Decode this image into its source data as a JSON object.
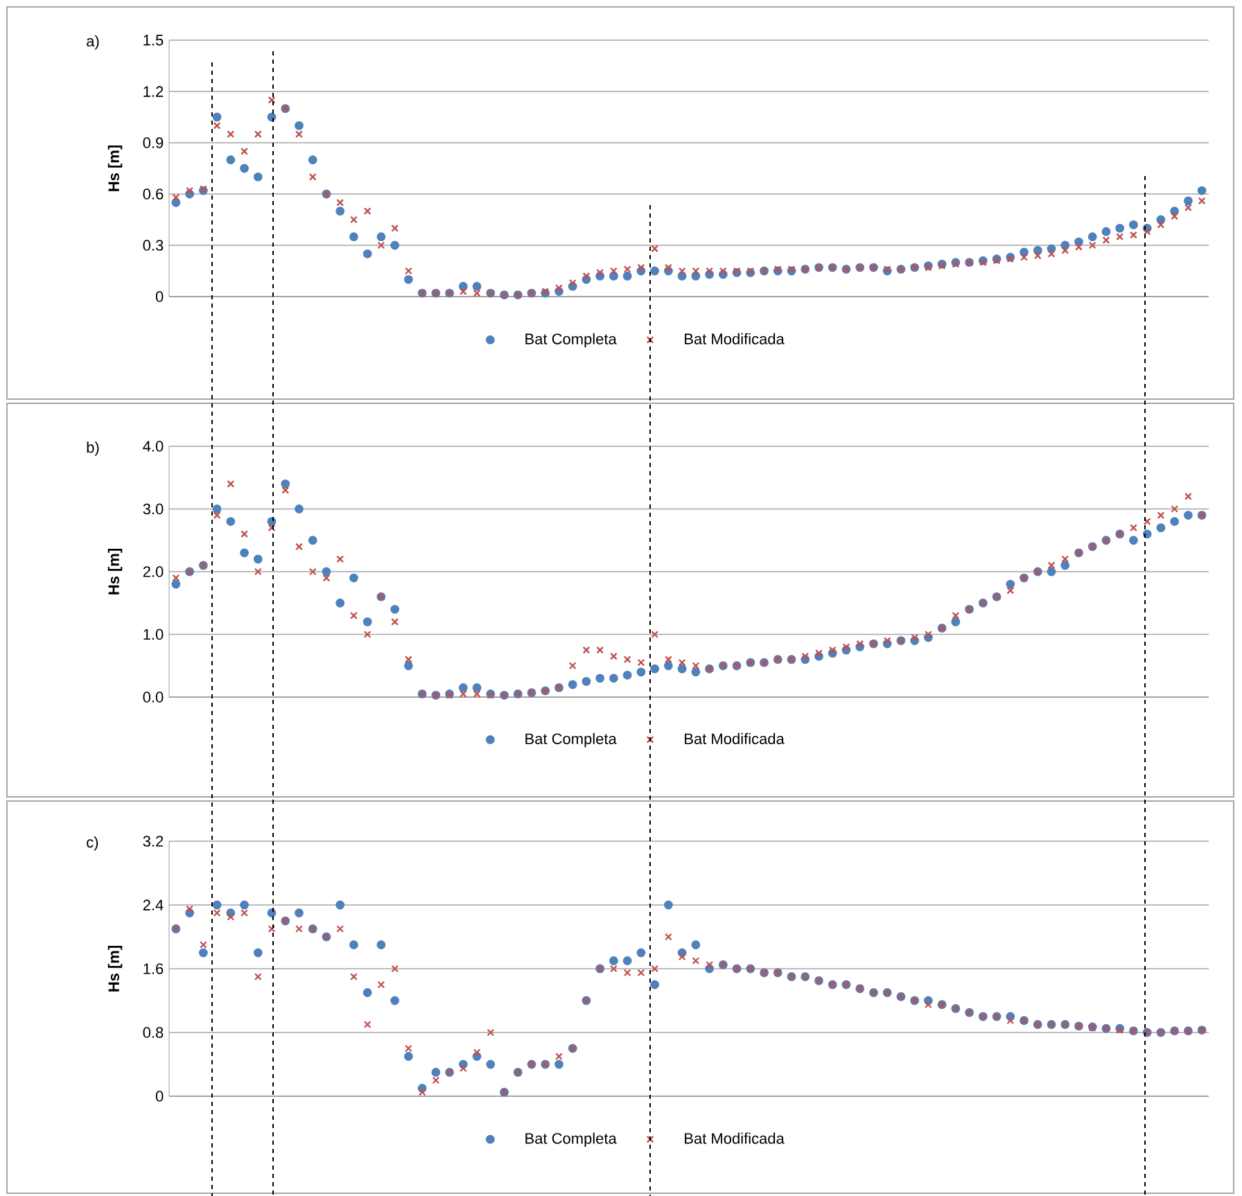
{
  "chart_data": [
    {
      "type": "scatter",
      "title": "a)",
      "ylabel": "Hs [m]",
      "categories": [
        null,
        null,
        null,
        null,
        null,
        null,
        null,
        null,
        null,
        null,
        null,
        null,
        null,
        null,
        null,
        null,
        null,
        null,
        null,
        null,
        null,
        null,
        null,
        null,
        null,
        null,
        null,
        null,
        null,
        null,
        null,
        null,
        null,
        null,
        null,
        null,
        null,
        null,
        null,
        null,
        null,
        null,
        null,
        null,
        null,
        null,
        null,
        null,
        null,
        null,
        null,
        null,
        null,
        null,
        null,
        null,
        null,
        null,
        null,
        null,
        null,
        null,
        null,
        null,
        null,
        null,
        null,
        null,
        null,
        null,
        null,
        null,
        null,
        null,
        null,
        null
      ],
      "series": [
        {
          "name": "Bat Completa",
          "color": "#4f81bd",
          "marker": "circle",
          "values": [
            0.55,
            0.6,
            0.62,
            1.05,
            0.8,
            0.75,
            0.7,
            1.05,
            1.1,
            1.0,
            0.8,
            0.6,
            0.5,
            0.35,
            0.25,
            0.35,
            0.3,
            0.1,
            0.02,
            0.02,
            0.02,
            0.06,
            0.06,
            0.02,
            0.01,
            0.01,
            0.02,
            0.02,
            0.03,
            0.06,
            0.1,
            0.12,
            0.12,
            0.12,
            0.15,
            0.15,
            0.15,
            0.12,
            0.12,
            0.13,
            0.13,
            0.14,
            0.14,
            0.15,
            0.15,
            0.15,
            0.16,
            0.17,
            0.17,
            0.16,
            0.17,
            0.17,
            0.15,
            0.16,
            0.17,
            0.18,
            0.19,
            0.2,
            0.2,
            0.21,
            0.22,
            0.23,
            0.26,
            0.27,
            0.28,
            0.3,
            0.32,
            0.35,
            0.38,
            0.4,
            0.42,
            0.4,
            0.45,
            0.5,
            0.56,
            0.62
          ]
        },
        {
          "name": "Bat Modificada",
          "color": "#c0504d",
          "marker": "cross",
          "values": [
            0.58,
            0.62,
            0.63,
            1.0,
            0.95,
            0.85,
            0.95,
            1.15,
            1.1,
            0.95,
            0.7,
            0.6,
            0.55,
            0.45,
            0.5,
            0.3,
            0.4,
            0.15,
            0.02,
            0.02,
            0.02,
            0.03,
            0.02,
            0.02,
            0.01,
            0.01,
            0.02,
            0.03,
            0.05,
            0.08,
            0.12,
            0.14,
            0.15,
            0.16,
            0.17,
            0.28,
            0.17,
            0.15,
            0.15,
            0.15,
            0.15,
            0.15,
            0.15,
            0.15,
            0.16,
            0.16,
            0.16,
            0.17,
            0.17,
            0.16,
            0.17,
            0.17,
            0.16,
            0.16,
            0.17,
            0.17,
            0.18,
            0.19,
            0.2,
            0.2,
            0.21,
            0.22,
            0.23,
            0.24,
            0.25,
            0.27,
            0.29,
            0.3,
            0.33,
            0.35,
            0.36,
            0.38,
            0.42,
            0.47,
            0.52,
            0.56
          ]
        }
      ],
      "ylim": [
        0,
        1.5
      ],
      "yticks": [
        0,
        0.3,
        0.6,
        0.9,
        1.2,
        1.5
      ],
      "grid": "y",
      "legend": "bottom"
    },
    {
      "type": "scatter",
      "title": "b)",
      "ylabel": "Hs [m]",
      "categories": [
        null,
        null,
        null,
        null,
        null,
        null,
        null,
        null,
        null,
        null,
        null,
        null,
        null,
        null,
        null,
        null,
        null,
        null,
        null,
        null,
        null,
        null,
        null,
        null,
        null,
        null,
        null,
        null,
        null,
        null,
        null,
        null,
        null,
        null,
        null,
        null,
        null,
        null,
        null,
        null,
        null,
        null,
        null,
        null,
        null,
        null,
        null,
        null,
        null,
        null,
        null,
        null,
        null,
        null,
        null,
        null,
        null,
        null,
        null,
        null,
        null,
        null,
        null,
        null,
        null,
        null,
        null,
        null,
        null,
        null,
        null,
        null,
        null,
        null,
        null,
        null
      ],
      "series": [
        {
          "name": "Bat Completa",
          "color": "#4f81bd",
          "marker": "circle",
          "values": [
            1.8,
            2.0,
            2.1,
            3.0,
            2.8,
            2.3,
            2.2,
            2.8,
            3.4,
            3.0,
            2.5,
            2.0,
            1.5,
            1.9,
            1.2,
            1.6,
            1.4,
            0.5,
            0.05,
            0.03,
            0.05,
            0.15,
            0.15,
            0.05,
            0.03,
            0.05,
            0.07,
            0.1,
            0.15,
            0.2,
            0.25,
            0.3,
            0.3,
            0.35,
            0.4,
            0.45,
            0.5,
            0.45,
            0.4,
            0.45,
            0.5,
            0.5,
            0.55,
            0.55,
            0.6,
            0.6,
            0.6,
            0.65,
            0.7,
            0.75,
            0.8,
            0.85,
            0.85,
            0.9,
            0.9,
            0.95,
            1.1,
            1.2,
            1.4,
            1.5,
            1.6,
            1.8,
            1.9,
            2.0,
            2.0,
            2.1,
            2.3,
            2.4,
            2.5,
            2.6,
            2.5,
            2.6,
            2.7,
            2.8,
            2.9,
            2.9
          ]
        },
        {
          "name": "Bat Modificada",
          "color": "#c0504d",
          "marker": "cross",
          "values": [
            1.9,
            2.0,
            2.1,
            2.9,
            3.4,
            2.6,
            2.0,
            2.7,
            3.3,
            2.4,
            2.0,
            1.9,
            2.2,
            1.3,
            1.0,
            1.6,
            1.2,
            0.6,
            0.05,
            0.03,
            0.03,
            0.05,
            0.05,
            0.03,
            0.03,
            0.05,
            0.07,
            0.1,
            0.15,
            0.5,
            0.75,
            0.75,
            0.65,
            0.6,
            0.55,
            1.0,
            0.6,
            0.55,
            0.5,
            0.45,
            0.5,
            0.5,
            0.55,
            0.55,
            0.6,
            0.6,
            0.65,
            0.7,
            0.75,
            0.8,
            0.85,
            0.85,
            0.9,
            0.9,
            0.95,
            1.0,
            1.1,
            1.3,
            1.4,
            1.5,
            1.6,
            1.7,
            1.9,
            2.0,
            2.1,
            2.2,
            2.3,
            2.4,
            2.5,
            2.6,
            2.7,
            2.8,
            2.9,
            3.0,
            3.2,
            2.9
          ]
        }
      ],
      "ylim": [
        0,
        4
      ],
      "yticks": [
        {
          "value": 0,
          "label": "0.0"
        },
        {
          "value": 1,
          "label": "1.0"
        },
        {
          "value": 2,
          "label": "2.0"
        },
        {
          "value": 3,
          "label": "3.0"
        },
        {
          "value": 4,
          "label": "4.0"
        }
      ],
      "grid": "y",
      "legend": "bottom"
    },
    {
      "type": "scatter",
      "title": "c)",
      "ylabel": "Hs [m]",
      "categories": [
        null,
        null,
        null,
        null,
        null,
        null,
        null,
        null,
        null,
        null,
        null,
        null,
        null,
        null,
        null,
        null,
        null,
        null,
        null,
        null,
        null,
        null,
        null,
        null,
        null,
        null,
        null,
        null,
        null,
        null,
        null,
        null,
        null,
        null,
        null,
        null,
        null,
        null,
        null,
        null,
        null,
        null,
        null,
        null,
        null,
        null,
        null,
        null,
        null,
        null,
        null,
        null,
        null,
        null,
        null,
        null,
        null,
        null,
        null,
        null,
        null,
        null,
        null,
        null,
        null,
        null,
        null,
        null,
        null,
        null,
        null,
        null,
        null,
        null,
        null,
        null
      ],
      "series": [
        {
          "name": "Bat Completa",
          "color": "#4f81bd",
          "marker": "circle",
          "values": [
            2.1,
            2.3,
            1.8,
            2.4,
            2.3,
            2.4,
            1.8,
            2.3,
            2.2,
            2.3,
            2.1,
            2.0,
            2.4,
            1.9,
            1.3,
            1.9,
            1.2,
            0.5,
            0.1,
            0.3,
            0.3,
            0.4,
            0.5,
            0.4,
            0.05,
            0.3,
            0.4,
            0.4,
            0.4,
            0.6,
            1.2,
            1.6,
            1.7,
            1.7,
            1.8,
            1.4,
            2.4,
            1.8,
            1.9,
            1.6,
            1.65,
            1.6,
            1.6,
            1.55,
            1.55,
            1.5,
            1.5,
            1.45,
            1.4,
            1.4,
            1.35,
            1.3,
            1.3,
            1.25,
            1.2,
            1.2,
            1.15,
            1.1,
            1.05,
            1.0,
            1.0,
            1.0,
            0.95,
            0.9,
            0.9,
            0.9,
            0.88,
            0.87,
            0.85,
            0.85,
            0.82,
            0.8,
            0.8,
            0.82,
            0.82,
            0.83
          ]
        },
        {
          "name": "Bat Modificada",
          "color": "#c0504d",
          "marker": "cross",
          "values": [
            2.1,
            2.35,
            1.9,
            2.3,
            2.25,
            2.3,
            1.5,
            2.1,
            2.2,
            2.1,
            2.1,
            2.0,
            2.1,
            1.5,
            0.9,
            1.4,
            1.6,
            0.6,
            0.05,
            0.2,
            0.3,
            0.35,
            0.55,
            0.8,
            0.05,
            0.3,
            0.4,
            0.4,
            0.5,
            0.6,
            1.2,
            1.6,
            1.6,
            1.55,
            1.55,
            1.6,
            2.0,
            1.75,
            1.7,
            1.65,
            1.65,
            1.6,
            1.6,
            1.55,
            1.55,
            1.5,
            1.5,
            1.45,
            1.4,
            1.4,
            1.35,
            1.3,
            1.3,
            1.25,
            1.2,
            1.15,
            1.15,
            1.1,
            1.05,
            1.0,
            1.0,
            0.95,
            0.95,
            0.9,
            0.9,
            0.9,
            0.88,
            0.86,
            0.85,
            0.83,
            0.82,
            0.8,
            0.8,
            0.82,
            0.82,
            0.83
          ]
        }
      ],
      "ylim": [
        0,
        3.2
      ],
      "yticks": [
        0,
        0.8,
        1.6,
        2.4,
        3.2
      ],
      "grid": "y",
      "legend": "bottom"
    }
  ]
}
